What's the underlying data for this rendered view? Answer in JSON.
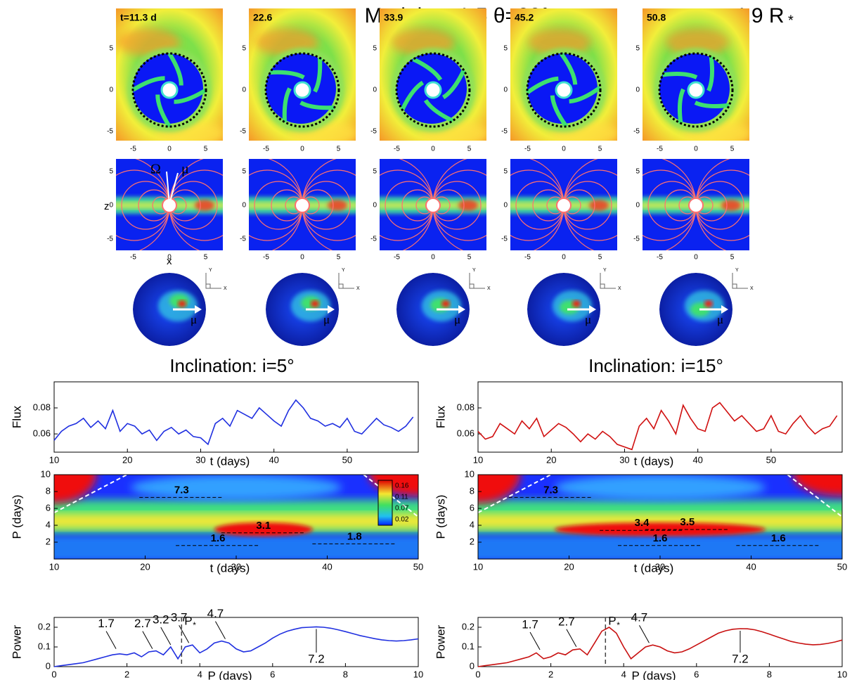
{
  "title": "Model:  μ=1.5   θ=20°",
  "radius": {
    "base": "r",
    "sub": "m",
    "text": "= 4.9 R",
    "star": "*"
  },
  "snapshots": {
    "times": [
      "t=11.3 d",
      "22.6",
      "33.9",
      "45.2",
      "50.8"
    ],
    "ticks": [
      -5,
      0,
      5
    ],
    "z_label": "z",
    "x_label": "x",
    "omega": "Ω",
    "mu": "μ",
    "axis_y": "Y",
    "axis_x": "X"
  },
  "chart_data": [
    {
      "type": "line",
      "title": "Inclination: i=5°",
      "ylabel": "Flux",
      "xlabel": "t (days)",
      "color": "#2030e0",
      "xlim": [
        10,
        59.7
      ],
      "ylim": [
        0.046,
        0.1
      ],
      "xticks": [
        10,
        20,
        30,
        40,
        50
      ],
      "yticks": [
        0.06,
        0.08
      ],
      "x": [
        10,
        11,
        12,
        13,
        14,
        15,
        16,
        17,
        18,
        19,
        20,
        21,
        22,
        23,
        24,
        25,
        26,
        27,
        28,
        29,
        30,
        31,
        32,
        33,
        34,
        35,
        36,
        37,
        38,
        39,
        40,
        41,
        42,
        43,
        44,
        45,
        46,
        47,
        48,
        49,
        50,
        51,
        52,
        53,
        54,
        55,
        56,
        57,
        58,
        59
      ],
      "values": [
        0.055,
        0.062,
        0.066,
        0.068,
        0.072,
        0.065,
        0.07,
        0.064,
        0.078,
        0.062,
        0.068,
        0.066,
        0.06,
        0.063,
        0.055,
        0.062,
        0.065,
        0.06,
        0.063,
        0.058,
        0.057,
        0.052,
        0.068,
        0.072,
        0.066,
        0.078,
        0.075,
        0.072,
        0.08,
        0.075,
        0.07,
        0.066,
        0.078,
        0.086,
        0.08,
        0.072,
        0.07,
        0.066,
        0.068,
        0.065,
        0.072,
        0.062,
        0.06,
        0.066,
        0.072,
        0.067,
        0.065,
        0.062,
        0.066,
        0.073
      ]
    },
    {
      "type": "wavelet",
      "ylabel": "P (days)",
      "xlabel": "t (days)",
      "xlim": [
        10,
        50
      ],
      "ylim": [
        0,
        10
      ],
      "xticks": [
        10,
        20,
        30,
        40,
        50
      ],
      "yticks": [
        2,
        4,
        6,
        8,
        10
      ],
      "colorbar": [
        0.16,
        0.11,
        0.07,
        0.02
      ],
      "annotations": [
        {
          "label": "7.3",
          "value": 7.3
        },
        {
          "label": "3.1",
          "value": 3.1
        },
        {
          "label": "1.6",
          "value": 1.6
        },
        {
          "label": "1.8",
          "value": 1.8
        }
      ]
    },
    {
      "type": "spectrum",
      "ylabel": "Power",
      "xlabel": "P (days)",
      "color": "#2030e0",
      "xlim": [
        0,
        10
      ],
      "ylim": [
        0,
        0.25
      ],
      "xticks": [
        0,
        2,
        4,
        6,
        8,
        10
      ],
      "yticks": [
        0,
        0.1,
        0.2
      ],
      "marker": {
        "base": "P",
        "sub": "*",
        "x": 3.5
      },
      "x": [
        0,
        0.2,
        0.4,
        0.6,
        0.8,
        1,
        1.2,
        1.4,
        1.6,
        1.8,
        2,
        2.2,
        2.4,
        2.6,
        2.8,
        3,
        3.2,
        3.4,
        3.6,
        3.8,
        4,
        4.2,
        4.4,
        4.6,
        4.8,
        5,
        5.2,
        5.4,
        5.6,
        5.8,
        6,
        6.2,
        6.4,
        6.6,
        6.8,
        7,
        7.2,
        7.4,
        7.6,
        7.8,
        8,
        8.2,
        8.4,
        8.6,
        8.8,
        9,
        9.2,
        9.4,
        9.6,
        9.8,
        10
      ],
      "values": [
        0,
        0.005,
        0.01,
        0.015,
        0.02,
        0.03,
        0.04,
        0.05,
        0.06,
        0.065,
        0.06,
        0.07,
        0.05,
        0.075,
        0.08,
        0.06,
        0.1,
        0.04,
        0.1,
        0.11,
        0.07,
        0.09,
        0.12,
        0.13,
        0.12,
        0.09,
        0.075,
        0.08,
        0.1,
        0.12,
        0.145,
        0.165,
        0.18,
        0.19,
        0.198,
        0.2,
        0.202,
        0.2,
        0.195,
        0.187,
        0.178,
        0.168,
        0.158,
        0.15,
        0.142,
        0.136,
        0.132,
        0.13,
        0.132,
        0.136,
        0.141
      ],
      "annotations": [
        {
          "label": "1.7",
          "x": 1.7,
          "y": 0.08
        },
        {
          "label": "2.7",
          "x": 2.7,
          "y": 0.08
        },
        {
          "label": "3.2",
          "x": 3.2,
          "y": 0.1
        },
        {
          "label": "3.7",
          "x": 3.7,
          "y": 0.11
        },
        {
          "label": "4.7",
          "x": 4.7,
          "y": 0.13
        },
        {
          "label": "7.2",
          "x": 7.2,
          "y": 0.202
        }
      ]
    },
    {
      "type": "line",
      "title": "Inclination: i=15°",
      "ylabel": "Flux",
      "xlabel": "t (days)",
      "color": "#d01010",
      "xlim": [
        10,
        59.7
      ],
      "ylim": [
        0.046,
        0.1
      ],
      "xticks": [
        10,
        20,
        30,
        40,
        50
      ],
      "yticks": [
        0.06,
        0.08
      ],
      "x": [
        10,
        11,
        12,
        13,
        14,
        15,
        16,
        17,
        18,
        19,
        20,
        21,
        22,
        23,
        24,
        25,
        26,
        27,
        28,
        29,
        30,
        31,
        32,
        33,
        34,
        35,
        36,
        37,
        38,
        39,
        40,
        41,
        42,
        43,
        44,
        45,
        46,
        47,
        48,
        49,
        50,
        51,
        52,
        53,
        54,
        55,
        56,
        57,
        58,
        59
      ],
      "values": [
        0.062,
        0.056,
        0.058,
        0.068,
        0.064,
        0.06,
        0.07,
        0.064,
        0.072,
        0.058,
        0.063,
        0.068,
        0.065,
        0.06,
        0.054,
        0.06,
        0.056,
        0.062,
        0.058,
        0.052,
        0.05,
        0.048,
        0.066,
        0.072,
        0.064,
        0.078,
        0.07,
        0.06,
        0.082,
        0.072,
        0.064,
        0.062,
        0.08,
        0.084,
        0.077,
        0.07,
        0.074,
        0.068,
        0.062,
        0.064,
        0.074,
        0.062,
        0.06,
        0.068,
        0.074,
        0.066,
        0.06,
        0.064,
        0.066,
        0.074
      ]
    },
    {
      "type": "wavelet",
      "ylabel": "P (days)",
      "xlabel": "t (days)",
      "xlim": [
        10,
        50
      ],
      "ylim": [
        0,
        10
      ],
      "xticks": [
        10,
        20,
        30,
        40,
        50
      ],
      "yticks": [
        2,
        4,
        6,
        8,
        10
      ],
      "annotations": [
        {
          "label": "7.3",
          "value": 7.3
        },
        {
          "label": "3.5",
          "value": 3.5
        },
        {
          "label": "3.4",
          "value": 3.4
        },
        {
          "label": "1.6",
          "value": 1.6
        },
        {
          "label": "1.6",
          "value": 1.6
        }
      ]
    },
    {
      "type": "spectrum",
      "ylabel": "Power",
      "xlabel": "P (days)",
      "color": "#c81010",
      "xlim": [
        0,
        10
      ],
      "ylim": [
        0,
        0.25
      ],
      "xticks": [
        0,
        2,
        4,
        6,
        8,
        10
      ],
      "yticks": [
        0,
        0.1,
        0.2
      ],
      "marker": {
        "base": "P",
        "sub": "*",
        "x": 3.5
      },
      "x": [
        0,
        0.2,
        0.4,
        0.6,
        0.8,
        1,
        1.2,
        1.4,
        1.6,
        1.8,
        2,
        2.2,
        2.4,
        2.6,
        2.8,
        3,
        3.2,
        3.4,
        3.6,
        3.8,
        4,
        4.2,
        4.4,
        4.6,
        4.8,
        5,
        5.2,
        5.4,
        5.6,
        5.8,
        6,
        6.2,
        6.4,
        6.6,
        6.8,
        7,
        7.2,
        7.4,
        7.6,
        7.8,
        8,
        8.2,
        8.4,
        8.6,
        8.8,
        9,
        9.2,
        9.4,
        9.6,
        9.8,
        10
      ],
      "values": [
        0,
        0.005,
        0.01,
        0.015,
        0.02,
        0.03,
        0.04,
        0.05,
        0.07,
        0.04,
        0.05,
        0.07,
        0.06,
        0.085,
        0.09,
        0.06,
        0.12,
        0.18,
        0.2,
        0.17,
        0.1,
        0.04,
        0.07,
        0.1,
        0.11,
        0.1,
        0.08,
        0.07,
        0.075,
        0.09,
        0.11,
        0.13,
        0.15,
        0.17,
        0.182,
        0.19,
        0.193,
        0.192,
        0.187,
        0.177,
        0.165,
        0.152,
        0.14,
        0.128,
        0.12,
        0.114,
        0.111,
        0.113,
        0.118,
        0.125,
        0.135
      ],
      "annotations": [
        {
          "label": "1.7",
          "x": 1.7,
          "y": 0.075
        },
        {
          "label": "2.7",
          "x": 2.7,
          "y": 0.09
        },
        {
          "label": "4.7",
          "x": 4.7,
          "y": 0.11
        },
        {
          "label": "7.2",
          "x": 7.2,
          "y": 0.193
        }
      ]
    }
  ]
}
